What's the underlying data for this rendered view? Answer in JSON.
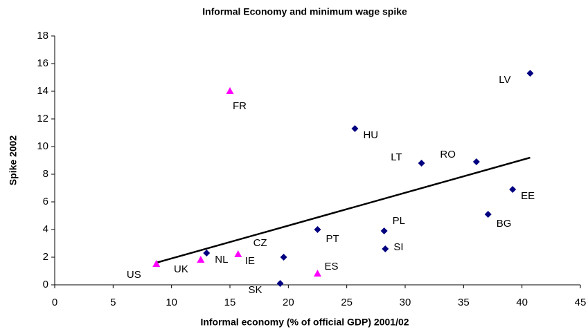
{
  "chart_data": {
    "type": "scatter",
    "title": "Informal Economy and minimum wage spike",
    "x_label": "Informal economy (% of official GDP) 2001/02",
    "y_label": "Spike 2002",
    "series": [
      {
        "color": "#000080",
        "marker": "diamond",
        "labels": [
          "LV",
          "HU",
          "LT",
          "RO",
          "EE",
          "BG",
          "PL",
          "SI",
          "PT",
          "CZ",
          "NL",
          "SK"
        ],
        "x": [
          40.7,
          25.7,
          31.4,
          36.1,
          39.2,
          37.1,
          28.2,
          28.3,
          22.5,
          19.6,
          13.0,
          19.3
        ],
        "values": [
          15.3,
          11.3,
          8.8,
          8.9,
          6.9,
          5.1,
          3.9,
          2.6,
          4.0,
          2.0,
          2.3,
          0.1
        ]
      },
      {
        "color": "#ff00ff",
        "marker": "triangle",
        "labels": [
          "FR",
          "US",
          "UK",
          "IE",
          "ES"
        ],
        "x": [
          15.0,
          8.7,
          12.5,
          15.7,
          22.5
        ],
        "values": [
          14.0,
          1.5,
          1.8,
          2.2,
          0.8
        ]
      }
    ],
    "trendline": {
      "color": "#000000",
      "x": [
        8.7,
        40.7
      ],
      "values": [
        1.6,
        9.2
      ]
    },
    "xlim": [
      0,
      45
    ],
    "xticks": [
      0,
      5,
      10,
      15,
      20,
      25,
      30,
      35,
      40,
      45
    ],
    "ylim": [
      0,
      18
    ],
    "yticks": [
      0,
      2,
      4,
      6,
      8,
      10,
      12,
      14,
      16,
      18
    ],
    "grid": false
  }
}
